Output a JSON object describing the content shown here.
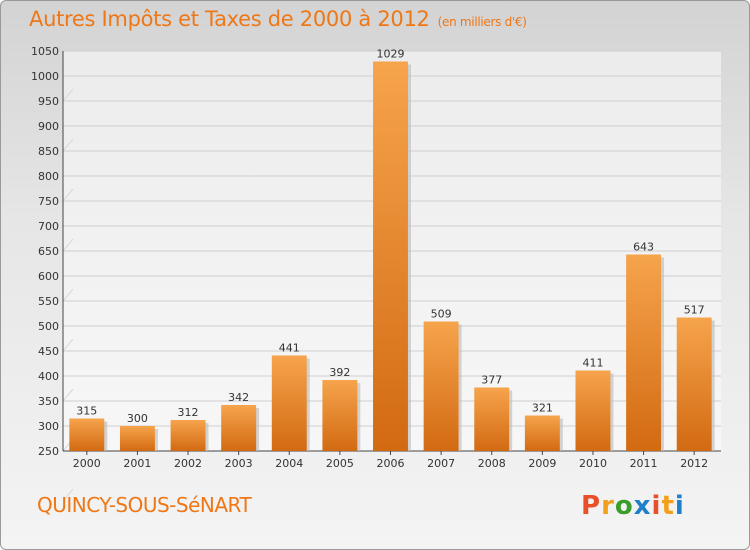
{
  "header": {
    "title": "Autres Impôts et Taxes de 2000 à 2012",
    "subtitle": "(en milliers d'€)"
  },
  "footer": {
    "town": "QUINCY-SOUS-SéNART",
    "brand": "Proxiti",
    "brand_colors": [
      "#e8502a",
      "#f2a01c",
      "#3a9e2a",
      "#1f7fc8",
      "#e8502a",
      "#f2a01c",
      "#1f7fc8"
    ]
  },
  "chart_data": {
    "type": "bar",
    "categories": [
      "2000",
      "2001",
      "2002",
      "2003",
      "2004",
      "2005",
      "2006",
      "2007",
      "2008",
      "2009",
      "2010",
      "2011",
      "2012"
    ],
    "values": [
      315,
      300,
      312,
      342,
      441,
      392,
      1029,
      509,
      377,
      321,
      411,
      643,
      517
    ],
    "title": "Autres Impôts et Taxes de 2000 à 2012",
    "subtitle": "(en milliers d'€)",
    "xlabel": "",
    "ylabel": "",
    "ylim": [
      250,
      1050
    ],
    "yticks": [
      250,
      300,
      350,
      400,
      450,
      500,
      550,
      600,
      650,
      700,
      750,
      800,
      850,
      900,
      950,
      1000,
      1050
    ],
    "grid": true,
    "legend": "none",
    "bar_color_top": "#f6a44c",
    "bar_color_bottom": "#d26a12"
  }
}
